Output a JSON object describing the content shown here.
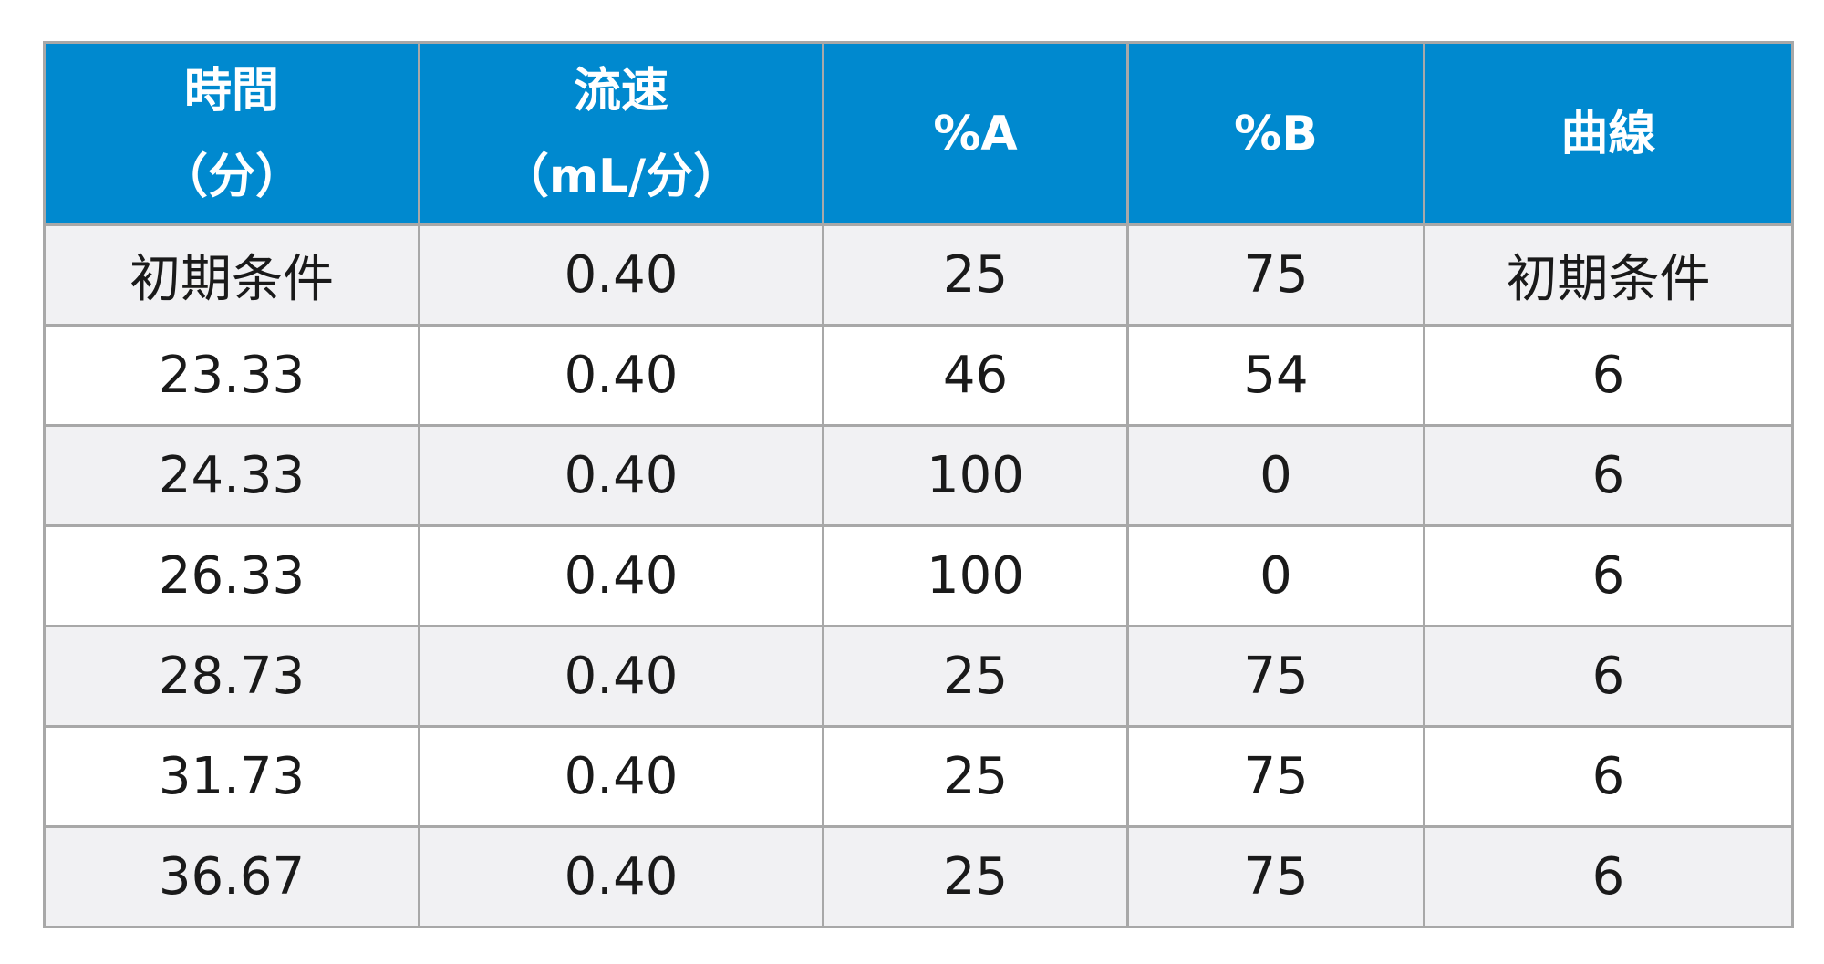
{
  "table": {
    "header": {
      "time": [
        "時間",
        "（分）"
      ],
      "flow": [
        "流速",
        "（mL/分）"
      ],
      "pct_a": "%A",
      "pct_b": "%B",
      "curve": "曲線"
    },
    "rows": [
      {
        "time": "初期条件",
        "flow": "0.40",
        "pct_a": "25",
        "pct_b": "75",
        "curve": "初期条件"
      },
      {
        "time": "23.33",
        "flow": "0.40",
        "pct_a": "46",
        "pct_b": "54",
        "curve": "6"
      },
      {
        "time": "24.33",
        "flow": "0.40",
        "pct_a": "100",
        "pct_b": "0",
        "curve": "6"
      },
      {
        "time": "26.33",
        "flow": "0.40",
        "pct_a": "100",
        "pct_b": "0",
        "curve": "6"
      },
      {
        "time": "28.73",
        "flow": "0.40",
        "pct_a": "25",
        "pct_b": "75",
        "curve": "6"
      },
      {
        "time": "31.73",
        "flow": "0.40",
        "pct_a": "25",
        "pct_b": "75",
        "curve": "6"
      },
      {
        "time": "36.67",
        "flow": "0.40",
        "pct_a": "25",
        "pct_b": "75",
        "curve": "6"
      }
    ]
  },
  "colors": {
    "header_bg": "#0089cf",
    "header_text": "#ffffff",
    "row_alt_bg": "#f1f1f3",
    "border": "#a8a8a8"
  }
}
